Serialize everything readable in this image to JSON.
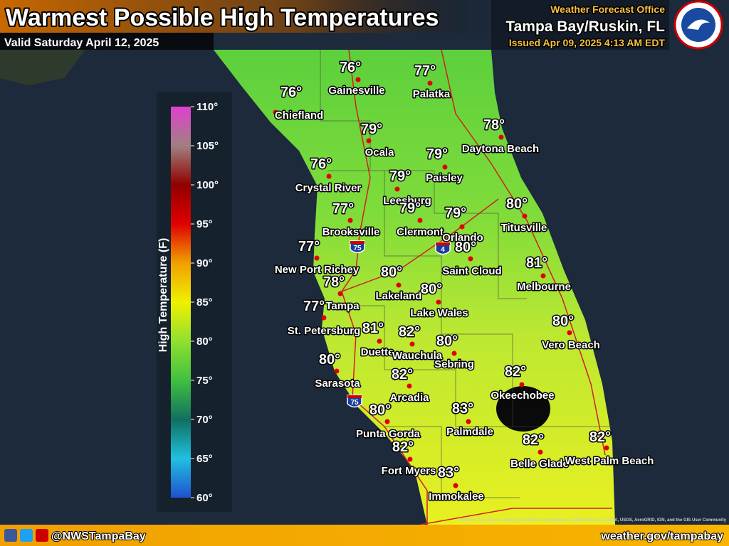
{
  "header": {
    "title": "Warmest Possible High Temperatures",
    "valid": "Valid Saturday April 12, 2025",
    "office_line1": "Weather Forecast Office",
    "office_line2": "Tampa Bay/Ruskin, FL",
    "issued": "Issued Apr 09, 2025 4:13 AM EDT"
  },
  "legend": {
    "title": "High Temperature (F)",
    "ticks": [
      {
        "value": 60,
        "label": "60°"
      },
      {
        "value": 65,
        "label": "65°"
      },
      {
        "value": 70,
        "label": "70°"
      },
      {
        "value": 75,
        "label": "75°"
      },
      {
        "value": 80,
        "label": "80°"
      },
      {
        "value": 85,
        "label": "85°"
      },
      {
        "value": 90,
        "label": "90°"
      },
      {
        "value": 95,
        "label": "95°"
      },
      {
        "value": 100,
        "label": "100°"
      },
      {
        "value": 105,
        "label": "105°"
      },
      {
        "value": 110,
        "label": "110°"
      }
    ]
  },
  "cities": [
    {
      "name": "Gainesville",
      "temp": "76°"
    },
    {
      "name": "Palatka",
      "temp": "77°"
    },
    {
      "name": "Chiefland",
      "temp": "76°"
    },
    {
      "name": "Ocala",
      "temp": "79°"
    },
    {
      "name": "Daytona Beach",
      "temp": "78°"
    },
    {
      "name": "Paisley",
      "temp": "79°"
    },
    {
      "name": "Crystal River",
      "temp": "76°"
    },
    {
      "name": "Leesburg",
      "temp": "79°"
    },
    {
      "name": "Titusville",
      "temp": "80°"
    },
    {
      "name": "Brooksville",
      "temp": "77°"
    },
    {
      "name": "Clermont",
      "temp": "79°"
    },
    {
      "name": "Orlando",
      "temp": "79°"
    },
    {
      "name": "New Port Richey",
      "temp": "77°"
    },
    {
      "name": "Saint Cloud",
      "temp": "80°"
    },
    {
      "name": "Melbourne",
      "temp": "81°"
    },
    {
      "name": "Lakeland",
      "temp": "80°"
    },
    {
      "name": "Tampa",
      "temp": "78°"
    },
    {
      "name": "Lake Wales",
      "temp": "80°"
    },
    {
      "name": "St. Petersburg",
      "temp": "77°"
    },
    {
      "name": "Vero Beach",
      "temp": "80°"
    },
    {
      "name": "Duette",
      "temp": "81°"
    },
    {
      "name": "Wauchula",
      "temp": "82°"
    },
    {
      "name": "Sebring",
      "temp": "80°"
    },
    {
      "name": "Sarasota",
      "temp": "80°"
    },
    {
      "name": "Arcadia",
      "temp": "82°"
    },
    {
      "name": "Okeechobee",
      "temp": "82°"
    },
    {
      "name": "Punta Gorda",
      "temp": "80°"
    },
    {
      "name": "Palmdale",
      "temp": "83°"
    },
    {
      "name": "Fort Myers",
      "temp": "82°"
    },
    {
      "name": "Belle Glade",
      "temp": "82°"
    },
    {
      "name": "West Palm Beach",
      "temp": "82°"
    },
    {
      "name": "Immokalee",
      "temp": "83°"
    }
  ],
  "highways": [
    "75",
    "4",
    "75"
  ],
  "attribution": "Sources: Esri, Maxar, GeoEye, Earthstar Geographics, CNES/Airbus DS, USDA, USGS, AeroGRID, IGN, and the GIS User Community",
  "footer": {
    "handle": "@NWSTampaBay",
    "url": "weather.gov/tampabay"
  }
}
